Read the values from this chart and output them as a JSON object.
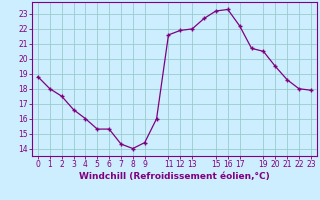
{
  "x": [
    0,
    1,
    2,
    3,
    4,
    5,
    6,
    7,
    8,
    9,
    10,
    11,
    12,
    13,
    14,
    15,
    16,
    17,
    18,
    19,
    20,
    21,
    22,
    23
  ],
  "y": [
    18.8,
    18.0,
    17.5,
    16.6,
    16.0,
    15.3,
    15.3,
    14.3,
    14.0,
    14.4,
    16.0,
    21.6,
    21.9,
    22.0,
    22.7,
    23.2,
    23.3,
    22.2,
    20.7,
    20.5,
    19.5,
    18.6,
    18.0,
    17.9
  ],
  "xticks": [
    0,
    1,
    2,
    3,
    4,
    5,
    6,
    7,
    8,
    9,
    11,
    12,
    13,
    15,
    16,
    17,
    19,
    20,
    21,
    22,
    23
  ],
  "xtick_labels": [
    "0",
    "1",
    "2",
    "3",
    "4",
    "5",
    "6",
    "7",
    "8",
    "9",
    "11",
    "12",
    "13",
    "15",
    "16",
    "17",
    "19",
    "20",
    "21",
    "22",
    "23"
  ],
  "yticks": [
    14,
    15,
    16,
    17,
    18,
    19,
    20,
    21,
    22,
    23
  ],
  "ylim": [
    13.5,
    23.8
  ],
  "xlim": [
    -0.5,
    23.5
  ],
  "xlabel": "Windchill (Refroidissement éolien,°C)",
  "line_color": "#800080",
  "marker": "+",
  "bg_color": "#cceeff",
  "grid_color": "#99cccc",
  "axis_color": "#800080",
  "tick_color": "#800080",
  "label_color": "#800080",
  "tick_fontsize": 5.5,
  "label_fontsize": 6.5
}
